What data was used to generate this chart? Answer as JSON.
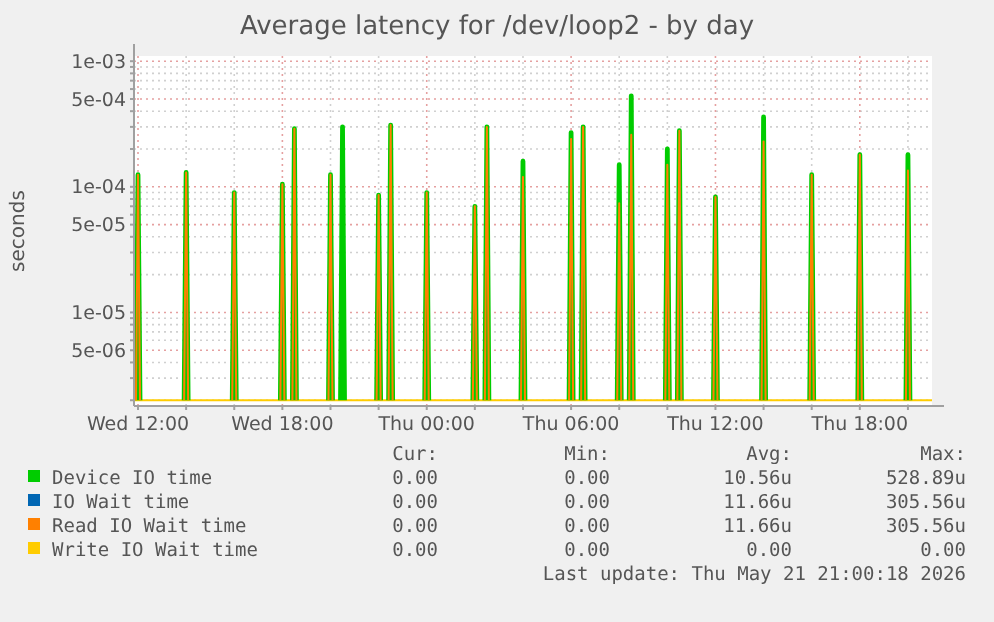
{
  "chart_data": {
    "type": "line",
    "title": "Average latency for /dev/loop2 - by day",
    "ylabel": "seconds",
    "log": "y",
    "grid": true,
    "legend": "bottom",
    "marker": "none",
    "line_style": "solid",
    "xlim": [
      "2026-05-20T11:50",
      "2026-05-21T21:00"
    ],
    "xticks": [
      {
        "value": "2026-05-20T12:00",
        "label": "Wed 12:00"
      },
      {
        "value": "2026-05-20T14:00",
        "label": null
      },
      {
        "value": "2026-05-20T16:00",
        "label": null
      },
      {
        "value": "2026-05-20T18:00",
        "label": "Wed 18:00"
      },
      {
        "value": "2026-05-20T20:00",
        "label": null
      },
      {
        "value": "2026-05-20T22:00",
        "label": null
      },
      {
        "value": "2026-05-21T00:00",
        "label": "Thu 00:00"
      },
      {
        "value": "2026-05-21T02:00",
        "label": null
      },
      {
        "value": "2026-05-21T04:00",
        "label": null
      },
      {
        "value": "2026-05-21T06:00",
        "label": "Thu 06:00"
      },
      {
        "value": "2026-05-21T08:00",
        "label": null
      },
      {
        "value": "2026-05-21T10:00",
        "label": null
      },
      {
        "value": "2026-05-21T12:00",
        "label": "Thu 12:00"
      },
      {
        "value": "2026-05-21T14:00",
        "label": null
      },
      {
        "value": "2026-05-21T16:00",
        "label": null
      },
      {
        "value": "2026-05-21T18:00",
        "label": "Thu 18:00"
      },
      {
        "value": "2026-05-21T20:00",
        "label": null
      }
    ],
    "ylim": [
      1.8e-06,
      0.0011
    ],
    "yticks": [
      {
        "value": 2e-06,
        "label": null
      },
      {
        "value": 3e-06,
        "label": null
      },
      {
        "value": 4e-06,
        "label": null
      },
      {
        "value": 5e-06,
        "label": "5e-06"
      },
      {
        "value": 6e-06,
        "label": null
      },
      {
        "value": 7e-06,
        "label": null
      },
      {
        "value": 8e-06,
        "label": null
      },
      {
        "value": 9e-06,
        "label": null
      },
      {
        "value": 1e-05,
        "label": "1e-05"
      },
      {
        "value": 2e-05,
        "label": null
      },
      {
        "value": 3e-05,
        "label": null
      },
      {
        "value": 4e-05,
        "label": null
      },
      {
        "value": 5e-05,
        "label": "5e-05"
      },
      {
        "value": 6e-05,
        "label": null
      },
      {
        "value": 7e-05,
        "label": null
      },
      {
        "value": 8e-05,
        "label": null
      },
      {
        "value": 9e-05,
        "label": null
      },
      {
        "value": 0.0001,
        "label": "1e-04"
      },
      {
        "value": 0.0002,
        "label": null
      },
      {
        "value": 0.0003,
        "label": null
      },
      {
        "value": 0.0004,
        "label": null
      },
      {
        "value": 0.0005,
        "label": "5e-04"
      },
      {
        "value": 0.0006,
        "label": null
      },
      {
        "value": 0.0007,
        "label": null
      },
      {
        "value": 0.0008,
        "label": null
      },
      {
        "value": 0.0009,
        "label": null
      },
      {
        "value": 0.001,
        "label": "1e-03"
      }
    ],
    "x": [
      "2026-05-20T11:55",
      "2026-05-20T12:00",
      "2026-05-20T12:05",
      "2026-05-20T12:10",
      "2026-05-20T13:55",
      "2026-05-20T14:00",
      "2026-05-20T14:05",
      "2026-05-20T14:10",
      "2026-05-20T15:55",
      "2026-05-20T16:00",
      "2026-05-20T16:05",
      "2026-05-20T16:10",
      "2026-05-20T17:55",
      "2026-05-20T18:00",
      "2026-05-20T18:05",
      "2026-05-20T18:10",
      "2026-05-20T18:25",
      "2026-05-20T18:30",
      "2026-05-20T18:35",
      "2026-05-20T18:40",
      "2026-05-20T19:55",
      "2026-05-20T20:00",
      "2026-05-20T20:05",
      "2026-05-20T20:10",
      "2026-05-20T20:25",
      "2026-05-20T20:30",
      "2026-05-20T20:35",
      "2026-05-20T20:40",
      "2026-05-20T21:55",
      "2026-05-20T22:00",
      "2026-05-20T22:05",
      "2026-05-20T22:10",
      "2026-05-20T22:25",
      "2026-05-20T22:30",
      "2026-05-20T22:35",
      "2026-05-20T22:40",
      "2026-05-20T23:55",
      "2026-05-21T00:00",
      "2026-05-21T00:05",
      "2026-05-21T00:10",
      "2026-05-21T01:55",
      "2026-05-21T02:00",
      "2026-05-21T02:05",
      "2026-05-21T02:10",
      "2026-05-21T02:25",
      "2026-05-21T02:30",
      "2026-05-21T02:35",
      "2026-05-21T02:40",
      "2026-05-21T03:55",
      "2026-05-21T04:00",
      "2026-05-21T04:05",
      "2026-05-21T04:10",
      "2026-05-21T05:55",
      "2026-05-21T06:00",
      "2026-05-21T06:05",
      "2026-05-21T06:10",
      "2026-05-21T06:25",
      "2026-05-21T06:30",
      "2026-05-21T06:35",
      "2026-05-21T06:40",
      "2026-05-21T07:55",
      "2026-05-21T08:00",
      "2026-05-21T08:05",
      "2026-05-21T08:10",
      "2026-05-21T08:25",
      "2026-05-21T08:30",
      "2026-05-21T08:35",
      "2026-05-21T08:40",
      "2026-05-21T09:55",
      "2026-05-21T10:00",
      "2026-05-21T10:05",
      "2026-05-21T10:10",
      "2026-05-21T10:25",
      "2026-05-21T10:30",
      "2026-05-21T10:35",
      "2026-05-21T10:40",
      "2026-05-21T11:55",
      "2026-05-21T12:00",
      "2026-05-21T12:05",
      "2026-05-21T12:10",
      "2026-05-21T13:55",
      "2026-05-21T14:00",
      "2026-05-21T14:05",
      "2026-05-21T14:10",
      "2026-05-21T15:55",
      "2026-05-21T16:00",
      "2026-05-21T16:05",
      "2026-05-21T16:10",
      "2026-05-21T17:55",
      "2026-05-21T18:00",
      "2026-05-21T18:05",
      "2026-05-21T18:10",
      "2026-05-21T19:55",
      "2026-05-21T20:00",
      "2026-05-21T20:05"
    ],
    "series": [
      {
        "name": "Write IO Wait time",
        "color": "#ffcc00",
        "x": [
          "2026-05-20T11:50",
          "2026-05-21T21:00"
        ],
        "values": [
          2e-06,
          2e-06
        ]
      },
      {
        "name": "IO Wait time",
        "color": "#0066b3",
        "values": [
          null,
          null,
          null,
          null,
          null,
          null,
          null,
          null,
          null,
          null,
          null,
          null,
          null,
          null,
          null,
          null,
          null,
          null,
          null,
          null,
          null,
          null,
          null,
          null,
          null,
          null,
          null,
          null,
          null,
          null,
          null,
          null,
          null,
          null,
          null,
          null,
          null,
          null,
          null,
          null,
          null,
          null,
          null,
          null,
          null,
          null,
          null,
          null,
          null,
          null,
          null,
          null,
          null,
          null,
          null,
          null,
          null,
          null,
          null,
          null,
          null,
          null,
          null,
          null,
          null,
          null,
          null,
          null,
          null,
          null,
          null,
          null,
          null,
          null,
          null,
          null,
          null,
          null,
          null,
          null,
          null,
          null,
          null,
          null,
          null,
          null,
          null,
          null,
          null,
          null,
          null,
          null,
          null,
          null,
          null
        ]
      },
      {
        "name": "Device IO time",
        "color": "#00cc00",
        "values": [
          2e-06,
          0.000125,
          2e-06,
          null,
          2e-06,
          0.00013,
          2e-06,
          null,
          2e-06,
          9e-05,
          2e-06,
          null,
          2e-06,
          0.000105,
          2e-06,
          null,
          2e-06,
          0.00029,
          2e-06,
          null,
          2e-06,
          0.000125,
          2e-06,
          null,
          2e-06,
          0.0003,
          2e-06,
          null,
          2e-06,
          8.6e-05,
          2e-06,
          null,
          2e-06,
          0.00031,
          2e-06,
          null,
          2e-06,
          9e-05,
          2e-06,
          null,
          2e-06,
          7e-05,
          2e-06,
          null,
          2e-06,
          0.0003,
          2e-06,
          null,
          2e-06,
          0.00016,
          2e-06,
          null,
          2e-06,
          0.00027,
          2e-06,
          null,
          2e-06,
          0.0003,
          2e-06,
          null,
          2e-06,
          0.00015,
          2e-06,
          null,
          2e-06,
          0.00053,
          2e-06,
          null,
          2e-06,
          0.0002,
          2e-06,
          null,
          2e-06,
          0.00028,
          2e-06,
          null,
          2e-06,
          8.3e-05,
          2e-06,
          null,
          2e-06,
          0.00036,
          2e-06,
          null,
          2e-06,
          0.000125,
          2e-06,
          null,
          2e-06,
          0.00018,
          2e-06,
          null,
          2e-06,
          0.00018,
          2e-06
        ]
      },
      {
        "name": "Read IO Wait time",
        "color": "#ff8000",
        "values": [
          2e-06,
          0.000125,
          2e-06,
          null,
          2e-06,
          0.00013,
          2e-06,
          null,
          2e-06,
          9e-05,
          2e-06,
          null,
          2e-06,
          0.000105,
          2e-06,
          null,
          2e-06,
          0.00029,
          2e-06,
          null,
          2e-06,
          0.000125,
          2e-06,
          null,
          null,
          null,
          null,
          null,
          2e-06,
          8.6e-05,
          2e-06,
          null,
          2e-06,
          0.00031,
          2e-06,
          null,
          2e-06,
          9e-05,
          2e-06,
          null,
          2e-06,
          7e-05,
          2e-06,
          null,
          2e-06,
          0.0003,
          2e-06,
          null,
          2e-06,
          0.00012,
          2e-06,
          null,
          2e-06,
          0.00024,
          2e-06,
          null,
          2e-06,
          0.0003,
          2e-06,
          null,
          2e-06,
          7.4e-05,
          2e-06,
          null,
          2e-06,
          0.00026,
          2e-06,
          null,
          2e-06,
          0.00015,
          2e-06,
          null,
          2e-06,
          0.00028,
          2e-06,
          null,
          2e-06,
          8.3e-05,
          2e-06,
          null,
          2e-06,
          0.00023,
          2e-06,
          null,
          2e-06,
          0.000125,
          2e-06,
          null,
          2e-06,
          0.00018,
          2e-06,
          null,
          2e-06,
          0.000135,
          2e-06
        ]
      }
    ],
    "annotations": [
      "Cur:",
      "Min:",
      "Avg:",
      "Max:",
      "0.00",
      "0.00",
      "10.56u",
      "528.89u",
      "0.00",
      "0.00",
      "11.66u",
      "305.56u",
      "0.00",
      "0.00",
      "11.66u",
      "305.56u",
      "0.00",
      "0.00",
      "0.00",
      "0.00",
      "Last update: Thu May 21 21:00:18 2026"
    ]
  }
}
